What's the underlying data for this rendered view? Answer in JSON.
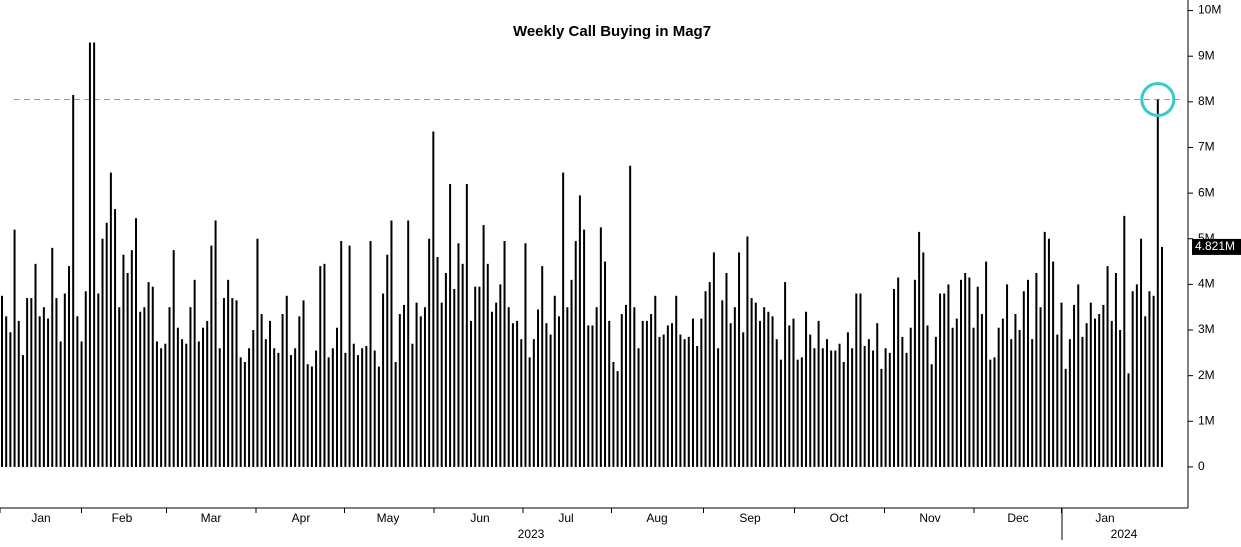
{
  "chart_data": {
    "type": "bar",
    "title": "Weekly Call Buying in Mag7",
    "color": "#000000",
    "x_labels": [
      "Jan",
      "Feb",
      "Mar",
      "Apr",
      "May",
      "Jun",
      "Jul",
      "Aug",
      "Sep",
      "Oct",
      "Nov",
      "Dec",
      "Jan"
    ],
    "years": [
      "2023",
      "2024"
    ],
    "values": [
      3.75,
      3.3,
      2.95,
      5.2,
      3.2,
      2.45,
      3.7,
      3.7,
      4.45,
      3.3,
      3.5,
      3.25,
      4.8,
      3.7,
      2.75,
      3.8,
      4.4,
      8.15,
      3.3,
      2.75,
      3.85,
      9.3,
      9.3,
      3.8,
      5.0,
      5.35,
      6.45,
      5.65,
      3.5,
      4.65,
      4.25,
      4.75,
      5.45,
      3.4,
      3.5,
      4.05,
      3.95,
      2.75,
      2.6,
      2.7,
      3.5,
      4.75,
      3.05,
      2.8,
      2.7,
      3.5,
      4.1,
      2.75,
      3.05,
      3.2,
      4.85,
      5.4,
      2.6,
      3.7,
      4.1,
      3.7,
      3.65,
      2.4,
      2.3,
      2.6,
      3.0,
      5.0,
      3.35,
      2.8,
      3.2,
      2.6,
      2.5,
      3.35,
      3.75,
      2.45,
      2.6,
      3.3,
      3.65,
      2.25,
      2.2,
      2.55,
      4.4,
      4.45,
      2.4,
      2.6,
      3.05,
      4.95,
      2.5,
      4.85,
      2.7,
      2.45,
      2.6,
      2.65,
      4.95,
      2.55,
      2.2,
      3.8,
      4.65,
      5.4,
      2.3,
      3.35,
      3.55,
      5.4,
      2.7,
      3.6,
      3.3,
      3.5,
      5.0,
      7.35,
      4.6,
      3.6,
      4.25,
      6.2,
      3.9,
      4.9,
      4.45,
      6.2,
      3.2,
      3.95,
      3.95,
      5.3,
      4.45,
      3.4,
      3.6,
      4.0,
      4.95,
      3.5,
      3.15,
      3.2,
      2.8,
      4.9,
      2.4,
      2.8,
      3.45,
      4.4,
      3.15,
      2.9,
      3.75,
      3.3,
      6.45,
      3.5,
      4.1,
      4.95,
      5.95,
      5.2,
      3.1,
      3.1,
      3.5,
      5.25,
      4.5,
      3.2,
      2.3,
      2.1,
      3.35,
      3.55,
      6.6,
      3.5,
      2.6,
      3.2,
      3.2,
      3.35,
      3.75,
      2.85,
      2.9,
      3.1,
      3.15,
      3.75,
      2.9,
      2.8,
      2.85,
      3.25,
      2.65,
      3.25,
      3.85,
      4.05,
      4.7,
      2.6,
      3.65,
      4.25,
      3.15,
      3.5,
      4.7,
      2.95,
      5.05,
      3.7,
      3.6,
      3.2,
      3.5,
      3.4,
      3.3,
      2.8,
      2.35,
      4.05,
      3.1,
      3.25,
      2.35,
      2.4,
      3.4,
      2.9,
      2.6,
      3.2,
      2.6,
      2.8,
      2.55,
      2.55,
      2.7,
      2.3,
      2.95,
      2.6,
      3.8,
      3.8,
      2.65,
      2.8,
      2.55,
      3.15,
      2.15,
      2.6,
      2.5,
      3.9,
      4.15,
      2.85,
      2.5,
      3.05,
      4.1,
      5.15,
      4.7,
      3.1,
      2.25,
      2.85,
      3.8,
      3.8,
      4.0,
      3.05,
      3.25,
      4.1,
      4.25,
      4.15,
      3.05,
      3.95,
      3.35,
      4.5,
      2.35,
      2.4,
      3.05,
      3.25,
      4.0,
      2.8,
      3.35,
      3.0,
      3.85,
      4.1,
      2.8,
      4.25,
      3.5,
      5.15,
      5.0,
      4.5,
      2.9,
      3.6,
      2.15,
      2.8,
      3.55,
      4.0,
      2.85,
      3.15,
      3.6,
      3.25,
      3.35,
      3.55,
      4.4,
      3.2,
      4.25,
      3.0,
      5.5,
      2.05,
      3.85,
      4.0,
      5.0,
      3.3,
      3.85,
      3.75,
      8.05,
      4.821
    ],
    "last_value_label": "4.821M",
    "reference_line": 8.05,
    "reference_color": "#3cc8c8",
    "ylim": [
      -0.9,
      10.1
    ],
    "yticks": [
      0,
      {
        "value": 1,
        "label": "1M"
      },
      {
        "value": 2,
        "label": "2M"
      },
      {
        "value": 3,
        "label": "3M"
      },
      {
        "value": 4,
        "label": "4M"
      },
      {
        "value": 5,
        "label": "5M"
      },
      {
        "value": 6,
        "label": "6M"
      },
      {
        "value": 7,
        "label": "7M"
      },
      {
        "value": 8,
        "label": "8M"
      },
      {
        "value": 9,
        "label": "9M"
      },
      {
        "value": 10,
        "label": "10M"
      }
    ]
  }
}
